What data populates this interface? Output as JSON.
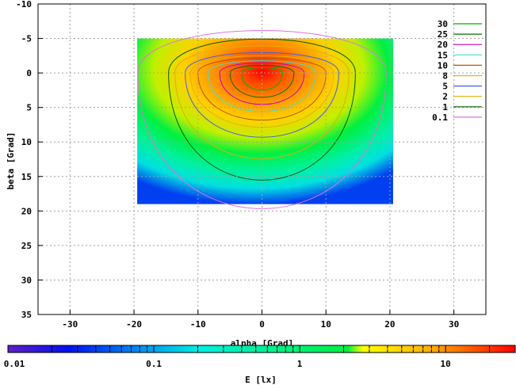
{
  "chart_data": {
    "type": "heatmap",
    "title": "",
    "xlabel": "alpha [Grad]",
    "ylabel": "beta [Grad]",
    "xlim": [
      -35,
      35
    ],
    "ylim": [
      -10,
      35
    ],
    "y_inverted": true,
    "xticks": [
      -30,
      -20,
      -10,
      0,
      10,
      20,
      30
    ],
    "yticks": [
      -10,
      -5,
      0,
      5,
      10,
      15,
      20,
      25,
      30,
      35
    ],
    "grid": true,
    "data_extent": {
      "alpha": [
        -19.5,
        20.5
      ],
      "beta": [
        -5,
        19
      ]
    },
    "peak": {
      "alpha": 0,
      "beta": 0
    },
    "contour_levels": [
      30,
      25,
      20,
      15,
      10,
      8,
      5,
      2,
      1,
      0.1
    ],
    "legend": {
      "position": "top-right",
      "entries": [
        {
          "label": "30",
          "color": "#00b000"
        },
        {
          "label": "25",
          "color": "#007000"
        },
        {
          "label": "20",
          "color": "#c000c0"
        },
        {
          "label": "15",
          "color": "#40e0d0"
        },
        {
          "label": "10",
          "color": "#c05000"
        },
        {
          "label": "8",
          "color": "#e8b000"
        },
        {
          "label": "5",
          "color": "#4060e0"
        },
        {
          "label": "2",
          "color": "#e0b000"
        },
        {
          "label": "1",
          "color": "#006000"
        },
        {
          "label": "0.1",
          "color": "#e070e0"
        }
      ]
    },
    "colorbar": {
      "label": "E [lx]",
      "scale": "log",
      "range": [
        0.01,
        30
      ],
      "ticks": [
        {
          "value": 0.01,
          "label": "0.01"
        },
        {
          "value": 0.1,
          "label": "0.1"
        },
        {
          "value": 1,
          "label": "1"
        },
        {
          "value": 10,
          "label": "10"
        }
      ]
    }
  }
}
